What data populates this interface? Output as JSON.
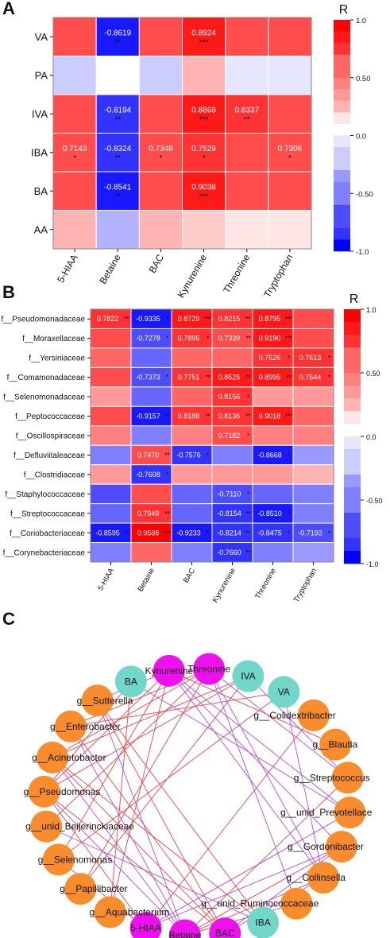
{
  "panels": {
    "A": "A",
    "B": "B",
    "C": "C"
  },
  "chart_data": [
    {
      "panel": "A",
      "type": "heatmap",
      "legend_title": "R",
      "colorbar_ticks": [
        "1.0",
        "0.50",
        "0.0",
        "-0.50",
        "-1.0"
      ],
      "colorbar_values": [
        1.0,
        0.5,
        0.0,
        -0.5,
        -1.0
      ],
      "rows": [
        "VA",
        "PA",
        "IVA",
        "IBA",
        "BA",
        "AA"
      ],
      "cols": [
        "5-HIAA",
        "Betaine",
        "BAC",
        "Kynurenine",
        "Threonine",
        "Tryptophan"
      ],
      "values": [
        [
          0.7,
          -0.8619,
          0.7,
          0.8924,
          0.65,
          0.65
        ],
        [
          -0.2,
          0.03,
          -0.25,
          0.3,
          -0.08,
          -0.08
        ],
        [
          0.7,
          -0.8194,
          0.7,
          0.8868,
          0.8337,
          0.7
        ],
        [
          0.7143,
          -0.8324,
          0.7348,
          0.7529,
          0.7,
          0.7306
        ],
        [
          0.7,
          -0.8541,
          0.7,
          0.9038,
          0.65,
          0.65
        ],
        [
          0.25,
          -0.3,
          0.25,
          0.15,
          0.1,
          0.06
        ]
      ],
      "labels": [
        [
          "",
          "-0.8619",
          "",
          "0.8924",
          "",
          ""
        ],
        [
          "",
          "",
          "",
          "",
          "",
          ""
        ],
        [
          "",
          "-0.8194",
          "",
          "0.8868",
          "0.8337",
          ""
        ],
        [
          "0.7143",
          "-0.8324",
          "0.7348",
          "0.7529",
          "",
          "0.7306"
        ],
        [
          "",
          "-0.8541",
          "",
          "0.9038",
          "",
          ""
        ],
        [
          "",
          "",
          "",
          "",
          "",
          ""
        ]
      ],
      "stars": [
        [
          "",
          "**",
          "",
          "***",
          "",
          ""
        ],
        [
          "",
          "",
          "",
          "",
          "",
          ""
        ],
        [
          "",
          "**",
          "",
          "***",
          "**",
          ""
        ],
        [
          "*",
          "**",
          "*",
          "*",
          "",
          "*"
        ],
        [
          "",
          "**",
          "",
          "***",
          "",
          ""
        ],
        [
          "",
          "",
          "",
          "",
          "",
          ""
        ]
      ]
    },
    {
      "panel": "B",
      "type": "heatmap",
      "legend_title": "R",
      "colorbar_ticks": [
        "1.0",
        "0.50",
        "0.0",
        "-0.50",
        "-1.0"
      ],
      "colorbar_values": [
        1.0,
        0.5,
        0.0,
        -0.5,
        -1.0
      ],
      "rows": [
        "f__Pseudomonadaceae",
        "f__Moraxellaceae",
        "f__Yersiniaceae",
        "f__Comamonadaceae",
        "f__Selenomonadaceae",
        "f__Peptococcaceae",
        "f__Oscillospiraceae",
        "f__Defluviitaleaceae",
        "f__Clostridiaceae",
        "f__Staphylococcaceae",
        "f__Streptococcaceae",
        "f__Coriobacteriaceae",
        "f__Corynebacteriaceae"
      ],
      "cols": [
        "5-HIAA",
        "Betaine",
        "BAC",
        "Kynurenine",
        "Threonine",
        "Tryptophan"
      ],
      "values": [
        [
          0.7822,
          -0.9335,
          0.8729,
          0.8215,
          0.8795,
          0.7
        ],
        [
          0.65,
          -0.7278,
          0.7895,
          0.7339,
          0.919,
          0.65
        ],
        [
          0.55,
          -0.6,
          0.55,
          0.55,
          0.7526,
          0.7613
        ],
        [
          0.65,
          -0.7373,
          0.7751,
          0.8525,
          0.8995,
          0.7544
        ],
        [
          0.4,
          -0.65,
          0.55,
          0.8156,
          0.4,
          0.4
        ],
        [
          0.65,
          -0.9157,
          0.8188,
          0.8136,
          0.9018,
          0.6
        ],
        [
          0.5,
          -0.55,
          0.5,
          0.7182,
          0.5,
          0.45
        ],
        [
          -0.55,
          0.747,
          -0.7576,
          -0.55,
          -0.8668,
          -0.4
        ],
        [
          0.4,
          -0.7608,
          0.4,
          0.35,
          0.35,
          0.3
        ],
        [
          -0.7,
          0.7,
          -0.6,
          -0.711,
          -0.6,
          -0.5
        ],
        [
          -0.6,
          0.7949,
          -0.6,
          -0.8154,
          -0.851,
          -0.55
        ],
        [
          -0.8595,
          0.9588,
          -0.9233,
          -0.8214,
          -0.8475,
          -0.7192
        ],
        [
          -0.55,
          0.6,
          -0.55,
          -0.766,
          -0.5,
          -0.45
        ]
      ],
      "labels": [
        [
          "0.7822",
          "-0.9335",
          "0.8729",
          "0.8215",
          "0.8795",
          ""
        ],
        [
          "",
          "-0.7278",
          "0.7895",
          "0.7339",
          "0.9190",
          ""
        ],
        [
          "",
          "",
          "",
          "",
          "0.7526",
          "0.7613"
        ],
        [
          "",
          "-0.7373",
          "0.7751",
          "0.8525",
          "0.8995",
          "0.7544"
        ],
        [
          "",
          "",
          "",
          "0.8156",
          "",
          ""
        ],
        [
          "",
          "-0.9157",
          "0.8188",
          "0.8136",
          "0.9018",
          ""
        ],
        [
          "",
          "",
          "",
          "0.7182",
          "",
          ""
        ],
        [
          "",
          "0.7470",
          "-0.7576",
          "",
          "-0.8668",
          ""
        ],
        [
          "",
          "-0.7608",
          "",
          "",
          "",
          ""
        ],
        [
          "",
          "",
          "",
          "-0.7110",
          "",
          ""
        ],
        [
          "",
          "0.7949",
          "",
          "-0.8154",
          "-0.8510",
          ""
        ],
        [
          "-0.8595",
          "0.9588",
          "-0.9233",
          "-0.8214",
          "-0.8475",
          "-0.7192"
        ],
        [
          "",
          "",
          "",
          "-0.7660",
          "",
          ""
        ]
      ],
      "stars": [
        [
          "**",
          "*",
          "***",
          "**",
          "***",
          ""
        ],
        [
          "",
          "*",
          "*",
          "**",
          "***",
          ""
        ],
        [
          "",
          "",
          "",
          "",
          "*",
          "*"
        ],
        [
          "",
          "*",
          "**",
          "**",
          "**",
          "*"
        ],
        [
          "",
          "",
          "",
          "*",
          "",
          ""
        ],
        [
          "",
          "**",
          "**",
          "**",
          "***",
          ""
        ],
        [
          "",
          "",
          "",
          "*",
          "",
          ""
        ],
        [
          "",
          "**",
          "*",
          "",
          "*",
          ""
        ],
        [
          "",
          "*",
          "",
          "",
          "",
          ""
        ],
        [
          "",
          "",
          "",
          "*",
          "",
          ""
        ],
        [
          "",
          "**",
          "",
          "**",
          "*",
          ""
        ],
        [
          "**",
          "***",
          "*",
          "**",
          "*",
          "*"
        ],
        [
          "",
          "",
          "",
          "**",
          "",
          ""
        ]
      ]
    },
    {
      "panel": "C",
      "type": "network",
      "nodes": [
        {
          "id": "Threonine",
          "group": "metabolite",
          "label": "Threonine"
        },
        {
          "id": "IVA",
          "group": "scfa",
          "label": "IVA"
        },
        {
          "id": "VA",
          "group": "scfa",
          "label": "VA"
        },
        {
          "id": "Colidextribacter",
          "group": "genus",
          "label": "g__Colidextribacter"
        },
        {
          "id": "Blautia",
          "group": "genus",
          "label": "g__Blautia"
        },
        {
          "id": "Streptococcus",
          "group": "genus",
          "label": "g__Streptococcus"
        },
        {
          "id": "unid_Prevotellace",
          "group": "genus",
          "label": "g__unid_Prevotellace"
        },
        {
          "id": "Gordonibacter",
          "group": "genus",
          "label": "g__Gordonibacter"
        },
        {
          "id": "Collinsella",
          "group": "genus",
          "label": "g__Collinsella"
        },
        {
          "id": "unid_Ruminococcaceae",
          "group": "genus",
          "label": "g__unid_Ruminococcaceae"
        },
        {
          "id": "IBA",
          "group": "scfa",
          "label": "IBA"
        },
        {
          "id": "BAC",
          "group": "metabolite",
          "label": "BAC"
        },
        {
          "id": "Betaine",
          "group": "metabolite",
          "label": "Betaine"
        },
        {
          "id": "5-HIAA",
          "group": "metabolite",
          "label": "5-HIAA"
        },
        {
          "id": "Aquabacterium",
          "group": "genus",
          "label": "g__Aquabacterium"
        },
        {
          "id": "Papillibacter",
          "group": "genus",
          "label": "g__Papillibacter"
        },
        {
          "id": "Selenomonas",
          "group": "genus",
          "label": "g__Selenomonas"
        },
        {
          "id": "unid_Beijerinckiaceae",
          "group": "genus",
          "label": "g__unid_Beijerinckiaceae"
        },
        {
          "id": "Pseudomonas",
          "group": "genus",
          "label": "g__Pseudomonas"
        },
        {
          "id": "Acinetobacter",
          "group": "genus",
          "label": "g__Acinetobacter"
        },
        {
          "id": "Enterobacter",
          "group": "genus",
          "label": "g__Enterobacter"
        },
        {
          "id": "Sutterella",
          "group": "genus",
          "label": "g__Sutterella"
        },
        {
          "id": "BA",
          "group": "scfa",
          "label": "BA"
        },
        {
          "id": "Kynurenine",
          "group": "metabolite",
          "label": "Kynurenine"
        }
      ],
      "edges_positive": [
        [
          "Kynurenine",
          "Sutterella"
        ],
        [
          "Kynurenine",
          "Pseudomonas"
        ],
        [
          "Kynurenine",
          "Selenomonas"
        ],
        [
          "Kynurenine",
          "Aquabacterium"
        ],
        [
          "Kynurenine",
          "Blautia"
        ],
        [
          "Threonine",
          "Enterobacter"
        ],
        [
          "Threonine",
          "Acinetobacter"
        ],
        [
          "Threonine",
          "unid_Beijerinckiaceae"
        ],
        [
          "Threonine",
          "Papillibacter"
        ],
        [
          "BAC",
          "Sutterella"
        ],
        [
          "BAC",
          "Pseudomonas"
        ],
        [
          "BAC",
          "Acinetobacter"
        ],
        [
          "BAC",
          "Enterobacter"
        ],
        [
          "5-HIAA",
          "Pseudomonas"
        ],
        [
          "5-HIAA",
          "Selenomonas"
        ],
        [
          "5-HIAA",
          "Colidextribacter"
        ],
        [
          "Betaine",
          "Collinsella"
        ],
        [
          "Betaine",
          "Gordonibacter"
        ],
        [
          "Betaine",
          "Streptococcus"
        ],
        [
          "Betaine",
          "unid_Ruminococcaceae"
        ],
        [
          "IVA",
          "Acinetobacter"
        ],
        [
          "IVA",
          "Pseudomonas"
        ],
        [
          "IVA",
          "Papillibacter"
        ],
        [
          "VA",
          "Enterobacter"
        ],
        [
          "VA",
          "Selenomonas"
        ],
        [
          "IBA",
          "Sutterella"
        ],
        [
          "IBA",
          "Acinetobacter"
        ],
        [
          "BA",
          "Pseudomonas"
        ],
        [
          "BA",
          "Aquabacterium"
        ]
      ],
      "edges_negative": [
        [
          "Kynurenine",
          "Collinsella"
        ],
        [
          "Kynurenine",
          "Gordonibacter"
        ],
        [
          "Kynurenine",
          "unid_Prevotellace"
        ],
        [
          "Threonine",
          "Collinsella"
        ],
        [
          "Threonine",
          "Streptococcus"
        ],
        [
          "Threonine",
          "unid_Ruminococcaceae"
        ],
        [
          "BAC",
          "Collinsella"
        ],
        [
          "BAC",
          "Gordonibacter"
        ],
        [
          "5-HIAA",
          "Gordonibacter"
        ],
        [
          "5-HIAA",
          "unid_Prevotellace"
        ],
        [
          "Betaine",
          "Sutterella"
        ],
        [
          "Betaine",
          "Pseudomonas"
        ],
        [
          "Betaine",
          "Acinetobacter"
        ],
        [
          "Betaine",
          "Enterobacter"
        ],
        [
          "IVA",
          "Streptococcus"
        ],
        [
          "VA",
          "Collinsella"
        ],
        [
          "BA",
          "unid_Prevotellace"
        ],
        [
          "IBA",
          "unid_Beijerinckiaceae"
        ]
      ],
      "colors": {
        "metabolite": "#ee11ee",
        "scfa": "#72d6c9",
        "genus": "#f98c2c",
        "edge_positive": "#e8454a",
        "edge_negative": "#b04de0"
      }
    }
  ]
}
